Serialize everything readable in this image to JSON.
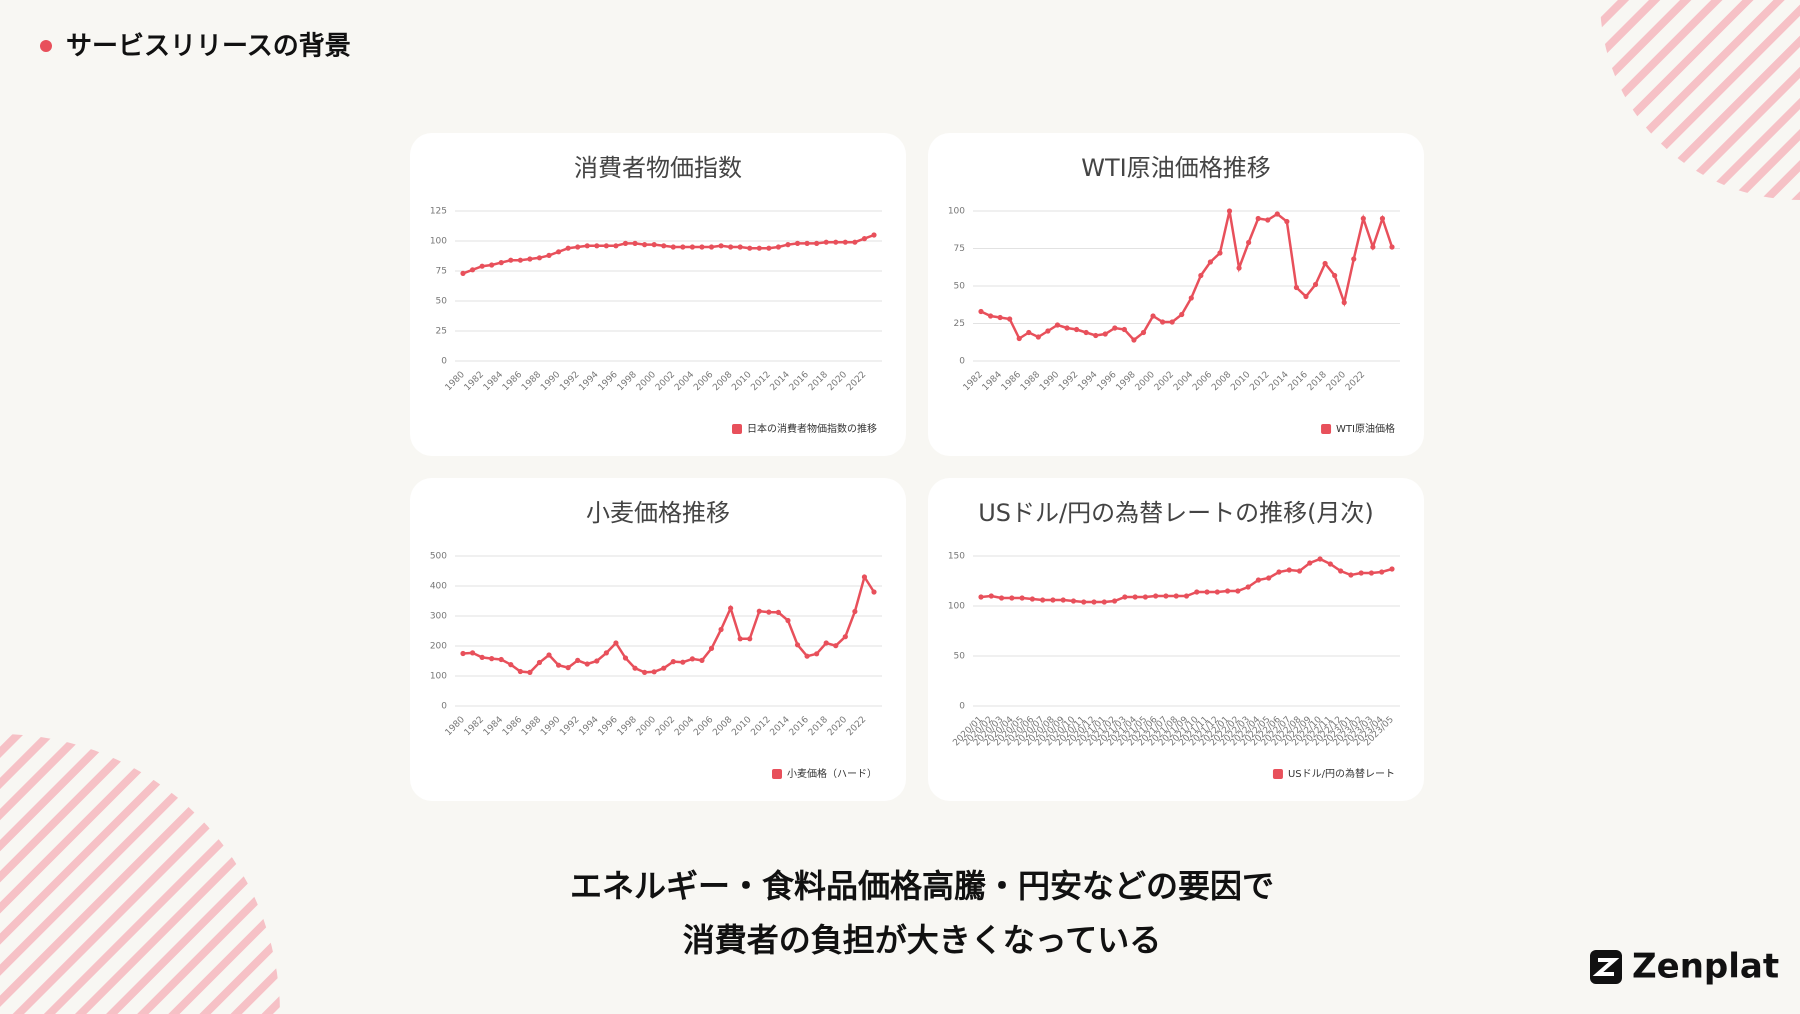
{
  "header": {
    "title": "サービスリリースの背景"
  },
  "chart_data": [
    {
      "type": "line",
      "title": "消費者物価指数",
      "categories": [
        "1980",
        null,
        "1982",
        null,
        "1984",
        null,
        "1986",
        null,
        "1988",
        null,
        "1990",
        null,
        "1992",
        null,
        "1994",
        null,
        "1996",
        null,
        "1998",
        null,
        "2000",
        null,
        "2002",
        null,
        "2004",
        null,
        "2006",
        null,
        "2008",
        null,
        "2010",
        null,
        "2012",
        null,
        "2014",
        null,
        "2016",
        null,
        "2018",
        null,
        "2020",
        null,
        "2022",
        null
      ],
      "series": [
        {
          "name": "日本の消費者物価指数の推移",
          "color": "#e8505b",
          "values": [
            73,
            76,
            79,
            80,
            82,
            84,
            84,
            85,
            86,
            88,
            91,
            94,
            95,
            96,
            96,
            96,
            96,
            98,
            98,
            97,
            97,
            96,
            95,
            95,
            95,
            95,
            95,
            96,
            95,
            95,
            94,
            94,
            94,
            95,
            97,
            98,
            98,
            98,
            99,
            99,
            99,
            99,
            102,
            105
          ]
        }
      ],
      "ylim": [
        0,
        125
      ],
      "yticks": [
        0,
        25,
        50,
        75,
        100,
        125
      ],
      "grid": true
    },
    {
      "type": "line",
      "title": "WTI原油価格推移",
      "categories": [
        "1982",
        null,
        "1984",
        null,
        "1986",
        null,
        "1988",
        null,
        "1990",
        null,
        "1992",
        null,
        "1994",
        null,
        "1996",
        null,
        "1998",
        null,
        "2000",
        null,
        "2002",
        null,
        "2004",
        null,
        "2006",
        null,
        "2008",
        null,
        "2010",
        null,
        "2012",
        null,
        "2014",
        null,
        "2016",
        null,
        "2018",
        null,
        "2020",
        null,
        "2022",
        null,
        null,
        null
      ],
      "series": [
        {
          "name": "WTI原油価格",
          "color": "#e8505b",
          "values": [
            33,
            30,
            29,
            28,
            15,
            19,
            16,
            20,
            24,
            22,
            21,
            19,
            17,
            18,
            22,
            21,
            14,
            19,
            30,
            26,
            26,
            31,
            42,
            57,
            66,
            72,
            100,
            62,
            79,
            95,
            94,
            98,
            93,
            49,
            43,
            51,
            65,
            57,
            39,
            68,
            95,
            76,
            95,
            76
          ]
        }
      ],
      "ylim": [
        0,
        100
      ],
      "yticks": [
        0,
        25,
        50,
        75,
        100
      ],
      "grid": true
    },
    {
      "type": "line",
      "title": "小麦価格推移",
      "categories": [
        "1980",
        null,
        "1982",
        null,
        "1984",
        null,
        "1986",
        null,
        "1988",
        null,
        "1990",
        null,
        "1992",
        null,
        "1994",
        null,
        "1996",
        null,
        "1998",
        null,
        "2000",
        null,
        "2002",
        null,
        "2004",
        null,
        "2006",
        null,
        "2008",
        null,
        "2010",
        null,
        "2012",
        null,
        "2014",
        null,
        "2016",
        null,
        "2018",
        null,
        "2020",
        null,
        "2022",
        null
      ],
      "series": [
        {
          "name": "小麦価格（ハード）",
          "color": "#e8505b",
          "values": [
            175,
            177,
            162,
            158,
            155,
            138,
            115,
            112,
            145,
            170,
            136,
            128,
            152,
            140,
            150,
            177,
            210,
            160,
            126,
            112,
            114,
            126,
            148,
            146,
            157,
            152,
            192,
            255,
            326,
            224,
            224,
            316,
            313,
            312,
            285,
            204,
            166,
            174,
            210,
            201,
            231,
            315,
            430,
            380
          ]
        }
      ],
      "ylim": [
        0,
        500
      ],
      "yticks": [
        0,
        100,
        200,
        300,
        400,
        500
      ],
      "grid": true
    },
    {
      "type": "line",
      "title": "USドル/円の為替レートの推移(月次)",
      "categories": [
        "2020/01",
        "2020/02",
        "2020/03",
        "2020/04",
        "2020/05",
        "2020/06",
        "2020/07",
        "2020/08",
        "2020/09",
        "2020/10",
        "2020/11",
        "2020/12",
        "2021/01",
        "2021/02",
        "2021/03",
        "2021/04",
        "2021/05",
        "2021/06",
        "2021/07",
        "2021/08",
        "2021/09",
        "2021/10",
        "2021/11",
        "2021/12",
        "2022/01",
        "2022/02",
        "2022/03",
        "2022/04",
        "2022/05",
        "2022/06",
        "2022/07",
        "2022/08",
        "2022/09",
        "2022/10",
        "2022/11",
        "2022/12",
        "2023/01",
        "2023/02",
        "2023/03",
        "2023/04",
        "2023/05"
      ],
      "series": [
        {
          "name": "USドル/円の為替レート",
          "color": "#e8505b",
          "values": [
            109,
            110,
            108,
            108,
            108,
            107,
            106,
            106,
            106,
            105,
            104,
            104,
            104,
            105,
            109,
            109,
            109,
            110,
            110,
            110,
            110,
            114,
            114,
            114,
            115,
            115,
            119,
            126,
            128,
            134,
            136,
            135,
            143,
            147,
            142,
            135,
            131,
            133,
            133,
            134,
            137
          ]
        }
      ],
      "ylim": [
        0,
        150
      ],
      "yticks": [
        0,
        50,
        100,
        150
      ],
      "grid": true
    }
  ],
  "message": [
    "エネルギー・食料品価格高騰・円安などの要因で",
    "消費者の負担が大きくなっている"
  ],
  "logo": {
    "text": "Zenplat"
  }
}
